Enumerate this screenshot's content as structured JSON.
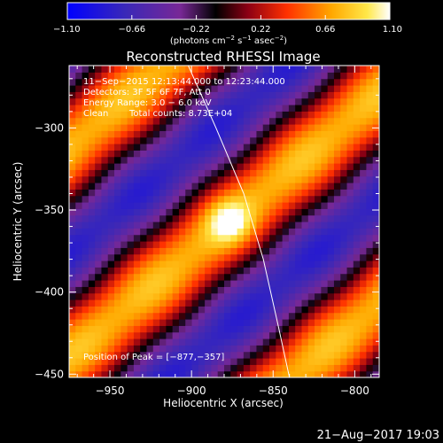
{
  "chart_data": {
    "type": "heatmap",
    "title": "Reconstructed RHESSI Image",
    "xlabel": "Heliocentric X (arcsec)",
    "ylabel": "Heliocentric Y (arcsec)",
    "xlim": [
      -975,
      -785
    ],
    "ylim": [
      -452,
      -262
    ],
    "xticks": [
      -950,
      -900,
      -850,
      -800
    ],
    "xtick_labels": [
      "−950",
      "−900",
      "−850",
      "−800"
    ],
    "yticks": [
      -300,
      -350,
      -400,
      -450
    ],
    "ytick_labels": [
      "−300",
      "−350",
      "−400",
      "−450"
    ],
    "colorbar": {
      "min": -1.1,
      "max": 1.1,
      "ticks": [
        -1.1,
        -0.66,
        -0.22,
        0.22,
        0.66,
        1.1
      ],
      "tick_labels": [
        "−1.10",
        "−0.66",
        "−0.22",
        "0.22",
        "0.66",
        "1.10"
      ],
      "unit_prefix": "(photons cm",
      "unit_sup1": "−2",
      "unit_mid1": " s",
      "unit_sup2": "−1",
      "unit_mid2": " asec",
      "unit_sup3": "−2",
      "unit_suffix": ")"
    },
    "annotations": [
      "11−Sep−2015 12:13:44.000 to 12:23:44.000",
      "Detectors: 3F 5F 6F 7F, Att 0",
      "Energy Range: 3.0 − 6.0 keV",
      "Clean",
      "Total counts: 8.73E+04"
    ],
    "peak_label": "Position of Peak = [−877,−357]",
    "peak": {
      "x": -877,
      "y": -357,
      "value": 1.1
    },
    "limb_curve": {
      "x": [
        -902,
        -885,
        -868,
        -856,
        -847,
        -840
      ],
      "y": [
        -262,
        -300,
        -340,
        -380,
        -420,
        -452
      ]
    },
    "pattern": {
      "angle_deg": 40,
      "period_arcsec": 98,
      "grid_n": 48
    }
  },
  "footer": {
    "timestamp": "21−Aug−2017 19:03"
  },
  "colors": {
    "background": "#000000",
    "foreground": "#ffffff",
    "limb_line": "#ffffff"
  }
}
